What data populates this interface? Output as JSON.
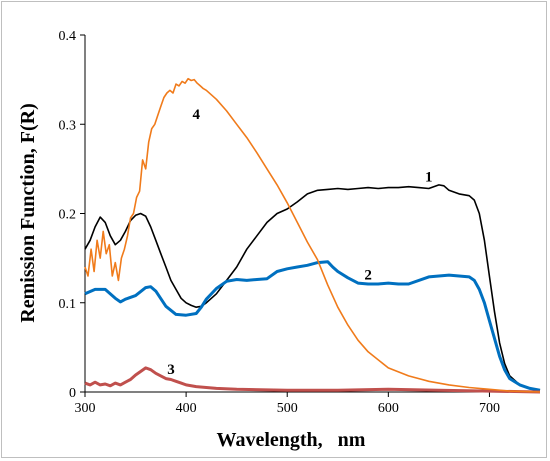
{
  "chart_data": {
    "type": "line",
    "title": "",
    "xlabel": "Wavelength,   nm",
    "ylabel": "Remission Function, F(R)",
    "xlim": [
      300,
      750
    ],
    "ylim": [
      0,
      0.4
    ],
    "x_ticks": [
      300,
      400,
      500,
      600,
      700
    ],
    "y_ticks": [
      0,
      0.1,
      0.2,
      0.3,
      0.4
    ],
    "x_tick_labels": [
      "300",
      "400",
      "500",
      "600",
      "700"
    ],
    "y_tick_labels": [
      "0",
      "0.1",
      "0.2",
      "0.3",
      "0.4"
    ],
    "grid": false,
    "legend": "none",
    "series": [
      {
        "label": "1",
        "color": "#000000",
        "x": [
          300,
          305,
          310,
          315,
          320,
          325,
          330,
          335,
          340,
          345,
          350,
          355,
          360,
          365,
          370,
          375,
          380,
          385,
          390,
          395,
          400,
          405,
          410,
          415,
          420,
          430,
          440,
          450,
          460,
          470,
          480,
          490,
          500,
          510,
          520,
          530,
          540,
          550,
          560,
          570,
          580,
          590,
          600,
          610,
          620,
          630,
          640,
          650,
          655,
          660,
          670,
          680,
          685,
          690,
          695,
          700,
          705,
          710,
          715,
          720,
          730,
          740,
          750
        ],
        "y": [
          0.16,
          0.17,
          0.185,
          0.196,
          0.19,
          0.175,
          0.165,
          0.17,
          0.18,
          0.192,
          0.198,
          0.2,
          0.197,
          0.185,
          0.17,
          0.155,
          0.14,
          0.125,
          0.115,
          0.105,
          0.1,
          0.097,
          0.095,
          0.096,
          0.1,
          0.11,
          0.125,
          0.14,
          0.16,
          0.175,
          0.19,
          0.2,
          0.205,
          0.213,
          0.222,
          0.226,
          0.227,
          0.228,
          0.227,
          0.228,
          0.229,
          0.228,
          0.229,
          0.229,
          0.23,
          0.229,
          0.228,
          0.232,
          0.231,
          0.226,
          0.222,
          0.22,
          0.215,
          0.2,
          0.17,
          0.13,
          0.09,
          0.055,
          0.032,
          0.018,
          0.008,
          0.004,
          0.002
        ]
      },
      {
        "label": "2",
        "color": "#0070c0",
        "x": [
          300,
          310,
          320,
          330,
          335,
          340,
          350,
          360,
          365,
          370,
          380,
          390,
          400,
          410,
          415,
          420,
          430,
          440,
          450,
          460,
          470,
          480,
          490,
          500,
          510,
          520,
          530,
          540,
          545,
          550,
          560,
          570,
          580,
          590,
          600,
          610,
          620,
          640,
          660,
          680,
          685,
          690,
          695,
          700,
          705,
          710,
          715,
          720,
          730,
          740,
          750
        ],
        "y": [
          0.11,
          0.115,
          0.115,
          0.105,
          0.101,
          0.104,
          0.108,
          0.117,
          0.118,
          0.113,
          0.096,
          0.087,
          0.086,
          0.088,
          0.095,
          0.104,
          0.116,
          0.124,
          0.126,
          0.125,
          0.126,
          0.127,
          0.135,
          0.138,
          0.14,
          0.142,
          0.145,
          0.146,
          0.14,
          0.135,
          0.128,
          0.122,
          0.121,
          0.121,
          0.122,
          0.121,
          0.121,
          0.129,
          0.131,
          0.129,
          0.125,
          0.115,
          0.1,
          0.08,
          0.06,
          0.04,
          0.025,
          0.015,
          0.008,
          0.004,
          0.002
        ]
      },
      {
        "label": "3",
        "color": "#c0504d",
        "x": [
          300,
          305,
          310,
          315,
          320,
          325,
          330,
          335,
          340,
          345,
          350,
          355,
          360,
          365,
          370,
          375,
          380,
          385,
          390,
          395,
          400,
          410,
          420,
          430,
          450,
          500,
          550,
          600,
          650,
          700,
          750
        ],
        "y": [
          0.01,
          0.008,
          0.011,
          0.008,
          0.009,
          0.007,
          0.01,
          0.008,
          0.011,
          0.014,
          0.019,
          0.023,
          0.027,
          0.025,
          0.021,
          0.018,
          0.015,
          0.014,
          0.012,
          0.01,
          0.008,
          0.006,
          0.005,
          0.004,
          0.003,
          0.002,
          0.002,
          0.003,
          0.002,
          0.001,
          0.0
        ]
      },
      {
        "label": "4",
        "color": "#f07b1b",
        "x": [
          300,
          303,
          306,
          309,
          312,
          315,
          318,
          321,
          324,
          327,
          330,
          333,
          336,
          339,
          342,
          345,
          348,
          351,
          354,
          357,
          360,
          363,
          366,
          369,
          372,
          375,
          378,
          381,
          384,
          387,
          390,
          393,
          396,
          399,
          402,
          405,
          408,
          411,
          414,
          417,
          420,
          430,
          440,
          450,
          460,
          470,
          480,
          490,
          500,
          510,
          520,
          530,
          540,
          550,
          560,
          570,
          580,
          600,
          620,
          640,
          660,
          680,
          700,
          720,
          750
        ],
        "y": [
          0.14,
          0.13,
          0.16,
          0.135,
          0.17,
          0.15,
          0.18,
          0.155,
          0.165,
          0.13,
          0.145,
          0.125,
          0.15,
          0.16,
          0.175,
          0.195,
          0.2,
          0.218,
          0.225,
          0.26,
          0.25,
          0.28,
          0.295,
          0.3,
          0.31,
          0.32,
          0.33,
          0.335,
          0.338,
          0.335,
          0.345,
          0.343,
          0.348,
          0.346,
          0.351,
          0.349,
          0.35,
          0.346,
          0.343,
          0.34,
          0.338,
          0.328,
          0.315,
          0.3,
          0.285,
          0.268,
          0.25,
          0.232,
          0.212,
          0.19,
          0.168,
          0.148,
          0.12,
          0.095,
          0.075,
          0.058,
          0.045,
          0.027,
          0.018,
          0.012,
          0.008,
          0.005,
          0.003,
          0.001,
          0.0
        ]
      }
    ],
    "annotations": [
      {
        "text": "1",
        "x": 640,
        "y": 0.236
      },
      {
        "text": "2",
        "x": 580,
        "y": 0.126
      },
      {
        "text": "3",
        "x": 385,
        "y": 0.02
      },
      {
        "text": "4",
        "x": 410,
        "y": 0.306
      }
    ]
  }
}
